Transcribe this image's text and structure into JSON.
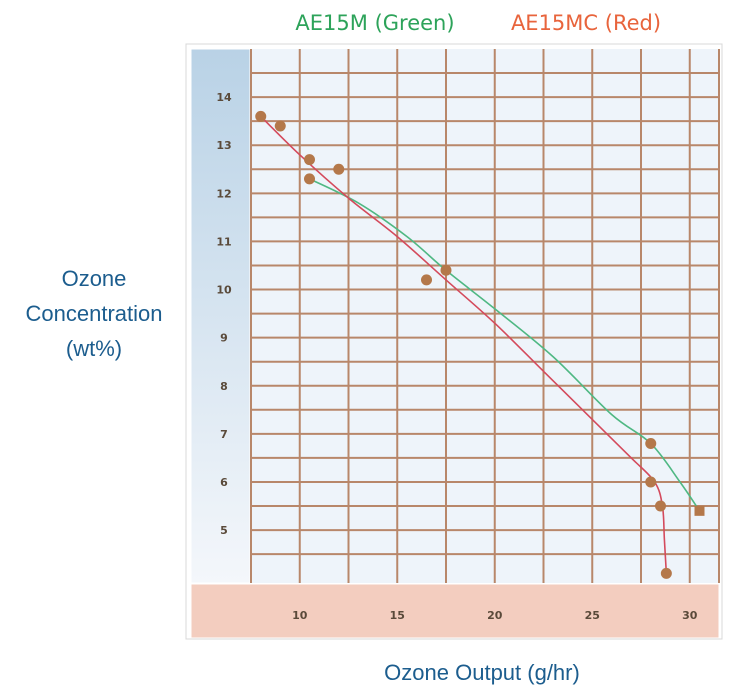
{
  "chart_data": {
    "type": "scatter",
    "xlabel": "Ozone Output (g/hr)",
    "ylabel_lines": [
      "Ozone",
      "Concentration",
      "(wt%)"
    ],
    "xlim": [
      7.5,
      31.5
    ],
    "ylim": [
      3.9,
      15.0
    ],
    "x_ticks": [
      10,
      15,
      20,
      25,
      30
    ],
    "y_ticks": [
      5,
      6,
      7,
      8,
      9,
      10,
      11,
      12,
      13,
      14
    ],
    "grid": true,
    "legend_position": "top",
    "series": [
      {
        "name": "AE15M (Green)",
        "color": "#2da35a",
        "points": [
          [
            10.5,
            12.3
          ],
          [
            17.5,
            10.4
          ],
          [
            28,
            6.8
          ],
          [
            30.5,
            5.4
          ]
        ],
        "curve": [
          [
            10.5,
            12.3
          ],
          [
            13,
            11.8
          ],
          [
            15.5,
            11.1
          ],
          [
            17.5,
            10.4
          ],
          [
            20,
            9.6
          ],
          [
            23,
            8.6
          ],
          [
            26,
            7.4
          ],
          [
            28,
            6.8
          ],
          [
            29.5,
            6.0
          ],
          [
            30.5,
            5.4
          ]
        ]
      },
      {
        "name": "AE15MC (Red)",
        "color": "#e8643c",
        "points": [
          [
            8,
            13.6
          ],
          [
            9,
            13.4
          ],
          [
            10.5,
            12.7
          ],
          [
            12,
            12.5
          ],
          [
            16.5,
            10.2
          ],
          [
            28,
            6.0
          ],
          [
            28.5,
            5.5
          ],
          [
            28.8,
            4.1
          ]
        ],
        "curve": [
          [
            8,
            13.6
          ],
          [
            10,
            12.8
          ],
          [
            12.5,
            11.9
          ],
          [
            15,
            11.1
          ],
          [
            17.5,
            10.2
          ],
          [
            20,
            9.3
          ],
          [
            22.5,
            8.3
          ],
          [
            25,
            7.3
          ],
          [
            27,
            6.5
          ],
          [
            28.2,
            6.0
          ],
          [
            28.6,
            5.5
          ],
          [
            28.7,
            4.8
          ],
          [
            28.8,
            4.1
          ]
        ]
      }
    ],
    "marker_color": "#b4784a"
  }
}
